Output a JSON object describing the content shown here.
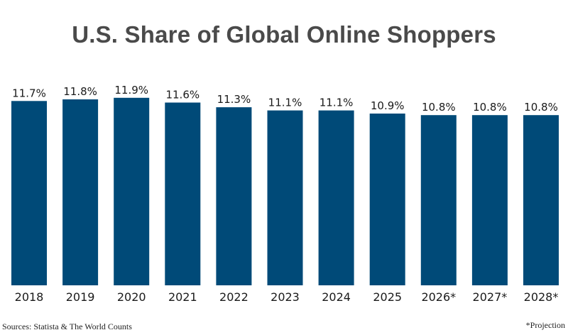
{
  "chart_data": {
    "type": "bar",
    "title": "U.S. Share of Global Online Shoppers",
    "categories": [
      "2018",
      "2019",
      "2020",
      "2021",
      "2022",
      "2023",
      "2024",
      "2025",
      "2026*",
      "2027*",
      "2028*"
    ],
    "values": [
      11.7,
      11.8,
      11.9,
      11.6,
      11.3,
      11.1,
      11.1,
      10.9,
      10.8,
      10.8,
      10.8
    ],
    "data_labels": [
      "11.7%",
      "11.8%",
      "11.9%",
      "11.6%",
      "11.3%",
      "11.1%",
      "11.1%",
      "10.9%",
      "10.8%",
      "10.8%",
      "10.8%"
    ],
    "xlabel": "",
    "ylabel": "",
    "ylim": [
      0,
      12
    ],
    "grid": false,
    "legend": "none",
    "colors": {
      "bar": "#004a78",
      "title": "#4a4a4a",
      "label": "#1a1a1a"
    }
  },
  "footer": {
    "source": "Sources: Statista & The World Counts",
    "note": "*Projection"
  }
}
